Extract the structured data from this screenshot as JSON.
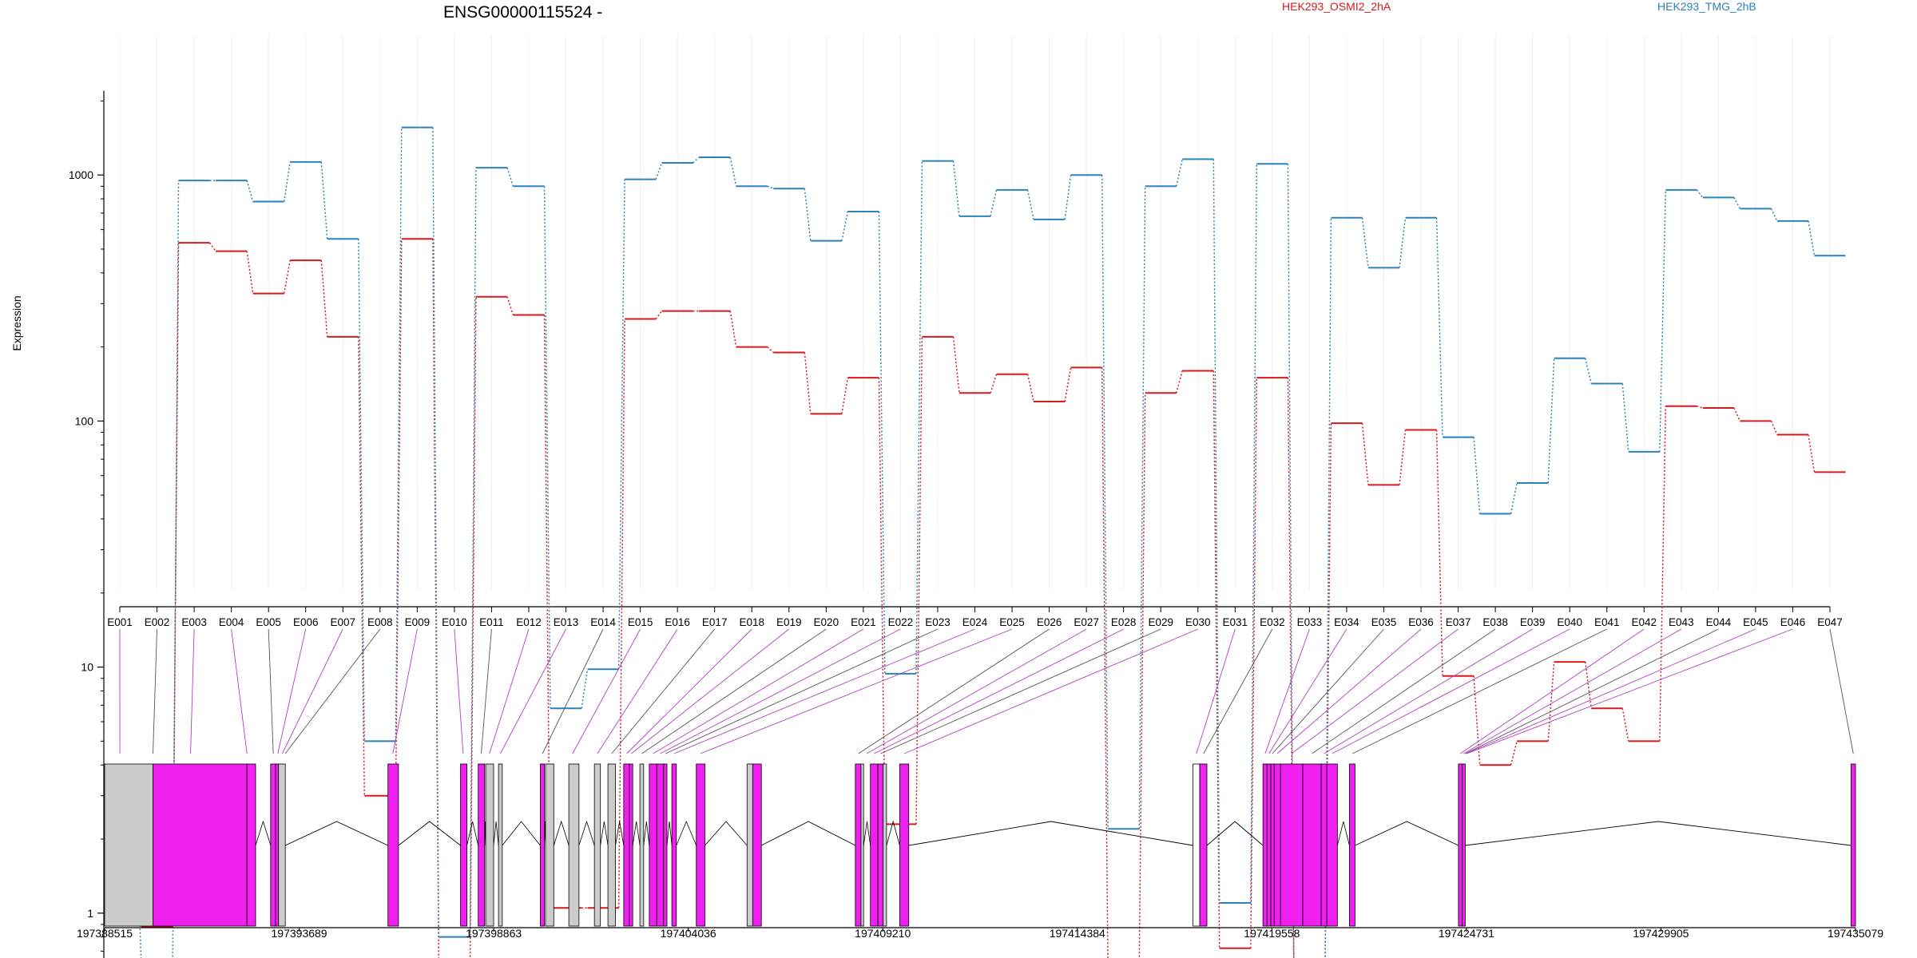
{
  "chart_data": {
    "type": "line",
    "title": "ENSG00000115524 -",
    "ylabel": "Expression",
    "yscale": "log",
    "ylim": [
      0.6,
      2200
    ],
    "yticks": [
      1,
      10,
      100,
      1000
    ],
    "ytick_labels": [
      "1",
      "10",
      "100",
      "1000"
    ],
    "exons": [
      "E001",
      "E002",
      "E003",
      "E004",
      "E005",
      "E006",
      "E007",
      "E008",
      "E009",
      "E010",
      "E011",
      "E012",
      "E013",
      "E014",
      "E015",
      "E016",
      "E017",
      "E018",
      "E019",
      "E020",
      "E021",
      "E022",
      "E023",
      "E024",
      "E025",
      "E026",
      "E027",
      "E028",
      "E029",
      "E030",
      "E031",
      "E032",
      "E033",
      "E034",
      "E035",
      "E036",
      "E037",
      "E038",
      "E039",
      "E040",
      "E041",
      "E042",
      "E043",
      "E044",
      "E045",
      "E046",
      "E047"
    ],
    "series": [
      {
        "name": "HEK293_OSMI2_2hA",
        "color": "#d7191c",
        "values": [
          1.05,
          0.88,
          530,
          490,
          330,
          450,
          220,
          3.0,
          550,
          0.6,
          320,
          270,
          1.05,
          1.05,
          260,
          280,
          280,
          200,
          190,
          107,
          150,
          2.3,
          220,
          130,
          155,
          120,
          165,
          0.6,
          130,
          160,
          0.72,
          150,
          0.6,
          98,
          55,
          92,
          9.2,
          4.0,
          5.0,
          10.5,
          6.8,
          5.0,
          115,
          113,
          100,
          88,
          62
        ]
      },
      {
        "name": "HEK293_TMG_2hB",
        "color": "#2b83ba",
        "values": [
          3.1,
          0.6,
          950,
          950,
          780,
          1130,
          550,
          5.0,
          1560,
          0.8,
          1070,
          900,
          6.8,
          9.8,
          960,
          1120,
          1180,
          900,
          880,
          540,
          710,
          9.4,
          1140,
          680,
          870,
          660,
          1000,
          2.2,
          900,
          1160,
          1.1,
          1110,
          0.6,
          670,
          420,
          670,
          86,
          42,
          56,
          180,
          142,
          75,
          870,
          810,
          730,
          650,
          470
        ]
      }
    ],
    "genomic_tick_labels": [
      "197388515",
      "197393689",
      "197398863",
      "197404036",
      "197409210",
      "197414384",
      "197419558",
      "197424731",
      "197429905",
      "197435079"
    ],
    "feature_colors": {
      "counted_exon": "#f021f0",
      "other_exon": "#cccccc",
      "open_exon": "#ffffff",
      "link_line": "#b040c0"
    },
    "gene_model": [
      {
        "start": 197388515,
        "end": 197389800,
        "type": "other_exon"
      },
      {
        "start": 197389800,
        "end": 197392300,
        "type": "counted_exon"
      },
      {
        "start": 197392300,
        "end": 197392530,
        "type": "counted_exon"
      },
      {
        "start": 197392930,
        "end": 197393060,
        "type": "counted_exon"
      },
      {
        "start": 197393060,
        "end": 197393140,
        "type": "counted_exon"
      },
      {
        "start": 197393140,
        "end": 197393320,
        "type": "other_exon"
      },
      {
        "start": 197396050,
        "end": 197396330,
        "type": "counted_exon"
      },
      {
        "start": 197397980,
        "end": 197398150,
        "type": "counted_exon"
      },
      {
        "start": 197398450,
        "end": 197398620,
        "type": "counted_exon"
      },
      {
        "start": 197398650,
        "end": 197398860,
        "type": "other_exon"
      },
      {
        "start": 197398990,
        "end": 197399090,
        "type": "other_exon"
      },
      {
        "start": 197400100,
        "end": 197400210,
        "type": "counted_exon"
      },
      {
        "start": 197400240,
        "end": 197400460,
        "type": "other_exon"
      },
      {
        "start": 197400860,
        "end": 197401130,
        "type": "other_exon"
      },
      {
        "start": 197401540,
        "end": 197401700,
        "type": "other_exon"
      },
      {
        "start": 197401900,
        "end": 197402100,
        "type": "other_exon"
      },
      {
        "start": 197402320,
        "end": 197402470,
        "type": "counted_exon"
      },
      {
        "start": 197402470,
        "end": 197402560,
        "type": "counted_exon"
      },
      {
        "start": 197402750,
        "end": 197402850,
        "type": "other_exon"
      },
      {
        "start": 197403000,
        "end": 197403200,
        "type": "counted_exon"
      },
      {
        "start": 197403200,
        "end": 197403380,
        "type": "counted_exon"
      },
      {
        "start": 197403380,
        "end": 197403470,
        "type": "counted_exon"
      },
      {
        "start": 197403600,
        "end": 197403720,
        "type": "counted_exon"
      },
      {
        "start": 197404250,
        "end": 197404480,
        "type": "counted_exon"
      },
      {
        "start": 197405600,
        "end": 197405750,
        "type": "other_exon"
      },
      {
        "start": 197405750,
        "end": 197405980,
        "type": "counted_exon"
      },
      {
        "start": 197408480,
        "end": 197408630,
        "type": "counted_exon"
      },
      {
        "start": 197408630,
        "end": 197408700,
        "type": "other_exon"
      },
      {
        "start": 197408880,
        "end": 197409080,
        "type": "counted_exon"
      },
      {
        "start": 197409080,
        "end": 197409220,
        "type": "counted_exon"
      },
      {
        "start": 197409220,
        "end": 197409310,
        "type": "other_exon"
      },
      {
        "start": 197409660,
        "end": 197409900,
        "type": "counted_exon"
      },
      {
        "start": 197417460,
        "end": 197417640,
        "type": "open_exon"
      },
      {
        "start": 197417640,
        "end": 197417830,
        "type": "counted_exon"
      },
      {
        "start": 197419320,
        "end": 197419430,
        "type": "counted_exon"
      },
      {
        "start": 197419430,
        "end": 197419530,
        "type": "counted_exon"
      },
      {
        "start": 197419530,
        "end": 197419620,
        "type": "counted_exon"
      },
      {
        "start": 197419620,
        "end": 197419790,
        "type": "counted_exon"
      },
      {
        "start": 197419790,
        "end": 197420380,
        "type": "counted_exon"
      },
      {
        "start": 197420380,
        "end": 197420870,
        "type": "counted_exon"
      },
      {
        "start": 197420870,
        "end": 197421020,
        "type": "counted_exon"
      },
      {
        "start": 197421020,
        "end": 197421300,
        "type": "counted_exon"
      },
      {
        "start": 197421620,
        "end": 197421770,
        "type": "counted_exon"
      },
      {
        "start": 197424520,
        "end": 197424620,
        "type": "counted_exon"
      },
      {
        "start": 197424620,
        "end": 197424700,
        "type": "counted_exon"
      },
      {
        "start": 197434960,
        "end": 197435079,
        "type": "counted_exon"
      }
    ],
    "introns": [
      [
        197393320,
        197396050
      ],
      [
        197396330,
        197397980
      ],
      [
        197405980,
        197408480
      ],
      [
        197409900,
        197417460
      ],
      [
        197417830,
        197419320
      ],
      [
        197421770,
        197424520
      ],
      [
        197424700,
        197434960
      ]
    ],
    "exon_bin_links": [
      197388920,
      197389800,
      197390800,
      197392300,
      197393000,
      197393120,
      197393240,
      197393320,
      197396180,
      197398050,
      197398530,
      197398750,
      197399040,
      197400160,
      197400960,
      197401620,
      197402000,
      197402400,
      197402520,
      197402800,
      197403100,
      197403290,
      197403430,
      197403660,
      197404360,
      197408560,
      197408780,
      197408980,
      197409150,
      197409780,
      197417550,
      197417740,
      197419380,
      197419480,
      197419570,
      197419700,
      197420080,
      197420620,
      197420940,
      197421160,
      197421700,
      197424570,
      197424660,
      197424700,
      197424720,
      197424740,
      197435020
    ]
  }
}
